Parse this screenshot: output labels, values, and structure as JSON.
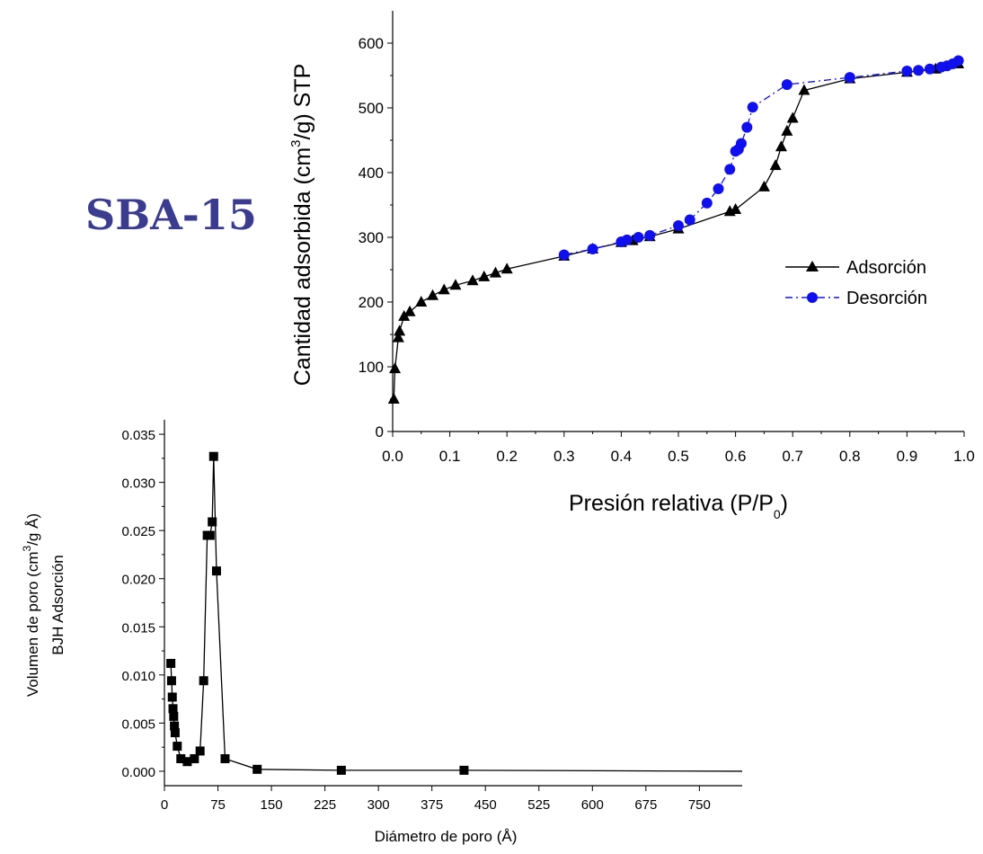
{
  "heading": "SBA-15",
  "chart_data": [
    {
      "type": "line",
      "xlabel": "Presión relativa (P/P",
      "xlabel_sub": "0",
      "xlabel_end": ")",
      "ylabel": "Cantidad adsorbida (cm",
      "ylabel_sup": "3",
      "ylabel_end": "/g) STP",
      "xlim": [
        0.0,
        1.0
      ],
      "ylim": [
        0,
        650
      ],
      "xticks": [
        "0.0",
        "0.1",
        "0.2",
        "0.3",
        "0.4",
        "0.5",
        "0.6",
        "0.7",
        "0.8",
        "0.9",
        "1.0"
      ],
      "yticks": [
        "0",
        "100",
        "200",
        "300",
        "400",
        "500",
        "600"
      ],
      "legend_position": "right",
      "series": [
        {
          "name": "Adsorción",
          "color": "#000000",
          "marker": "triangle",
          "line": "solid",
          "x": [
            0.002,
            0.004,
            0.01,
            0.012,
            0.02,
            0.03,
            0.05,
            0.07,
            0.09,
            0.11,
            0.14,
            0.16,
            0.18,
            0.2,
            0.3,
            0.35,
            0.4,
            0.42,
            0.45,
            0.5,
            0.59,
            0.6,
            0.65,
            0.67,
            0.68,
            0.69,
            0.7,
            0.72,
            0.8,
            0.9,
            0.95,
            0.99
          ],
          "y": [
            50,
            97,
            145,
            155,
            178,
            185,
            200,
            210,
            219,
            226,
            233,
            239,
            245,
            251,
            271,
            282,
            292,
            295,
            301,
            313,
            340,
            343,
            378,
            411,
            440,
            464,
            484,
            527,
            545,
            555,
            560,
            568
          ]
        },
        {
          "name": "Desorción",
          "color": "#1010ee",
          "marker": "circle",
          "line": "dash-dot",
          "x": [
            0.99,
            0.98,
            0.97,
            0.96,
            0.94,
            0.92,
            0.9,
            0.8,
            0.69,
            0.63,
            0.62,
            0.61,
            0.605,
            0.6,
            0.59,
            0.57,
            0.55,
            0.52,
            0.5,
            0.45,
            0.43,
            0.41,
            0.4,
            0.35,
            0.3
          ],
          "y": [
            573,
            568,
            565,
            563,
            560,
            558,
            557,
            547,
            536,
            501,
            470,
            445,
            436,
            433,
            405,
            375,
            353,
            327,
            318,
            303,
            300,
            296,
            293,
            282,
            273
          ]
        }
      ]
    },
    {
      "type": "line",
      "xlabel": "Diámetro de poro (Å)",
      "ylabel_line1": "Volumen de poro (cm",
      "ylabel_sup": "3",
      "ylabel_end": "/g Å)",
      "ylabel_line2": "BJH Adsorción",
      "xlim": [
        0,
        810
      ],
      "ylim": [
        -0.0015,
        0.0365
      ],
      "xticks": [
        "0",
        "75",
        "150",
        "225",
        "300",
        "375",
        "450",
        "525",
        "600",
        "675",
        "750"
      ],
      "yticks": [
        "0.000",
        "0.005",
        "0.010",
        "0.015",
        "0.020",
        "0.025",
        "0.030",
        "0.035"
      ],
      "series": [
        {
          "name": "",
          "color": "#000000",
          "marker": "square",
          "line": "solid",
          "x": [
            9,
            10,
            11,
            12,
            13,
            14,
            15,
            18,
            23,
            32,
            42,
            50,
            55,
            60,
            64,
            67,
            69,
            73,
            85,
            130,
            248,
            420,
            810
          ],
          "y": [
            0.0112,
            0.0094,
            0.0077,
            0.0065,
            0.0057,
            0.0047,
            0.004,
            0.0026,
            0.0013,
            0.001,
            0.0013,
            0.0021,
            0.0094,
            0.0245,
            0.0245,
            0.0259,
            0.0327,
            0.0208,
            0.0013,
            0.0002,
            0.0001,
            0.0001,
            0.0
          ]
        }
      ]
    }
  ]
}
